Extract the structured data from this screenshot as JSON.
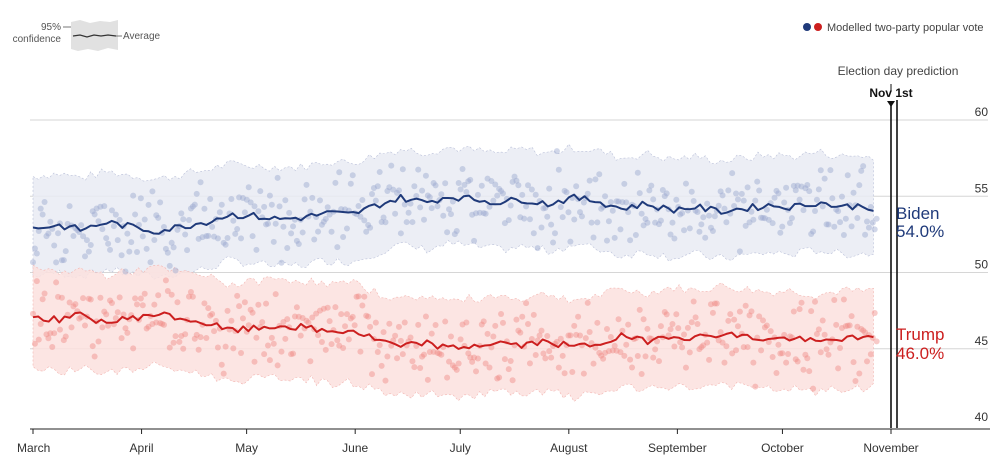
{
  "legend": {
    "confidence_label_line1": "95%",
    "confidence_label_line2": "confidence",
    "average_label": "Average",
    "dots_label": "Modelled two-party popular vote"
  },
  "prediction": {
    "title": "Election day prediction",
    "date_label": "Nov 1st"
  },
  "colors": {
    "biden": "#1f3a7a",
    "biden_band": "#e9ebf3",
    "biden_dot": "#9aa6cf",
    "trump": "#cc1f1f",
    "trump_band": "#fbe0de",
    "trump_dot": "#f08a86",
    "grid": "#d6d6d6"
  },
  "chart_data": {
    "type": "line",
    "title": "",
    "xlabel": "",
    "ylabel": "",
    "ylim": [
      40,
      60
    ],
    "y_ticks": [
      "40",
      "45",
      "50",
      "55",
      "60"
    ],
    "x_ticks": [
      "March",
      "April",
      "May",
      "June",
      "July",
      "August",
      "September",
      "October",
      "November"
    ],
    "x_range_days": [
      0,
      245
    ],
    "grid": true,
    "series": [
      {
        "name": "Biden",
        "final_label": "54.0%",
        "x": [
          0,
          7,
          14,
          21,
          28,
          35,
          42,
          49,
          56,
          63,
          70,
          77,
          84,
          91,
          98,
          105,
          112,
          119,
          126,
          133,
          140,
          147,
          154,
          161,
          168,
          175,
          182,
          189,
          196,
          203,
          210,
          217,
          224,
          231,
          238,
          241
        ],
        "average": [
          52.9,
          53.1,
          52.8,
          53.3,
          53.0,
          52.7,
          53.0,
          53.3,
          53.8,
          53.7,
          53.5,
          53.6,
          53.9,
          53.8,
          54.4,
          54.9,
          54.6,
          55.0,
          54.8,
          54.6,
          54.8,
          54.5,
          54.9,
          54.7,
          54.2,
          54.5,
          54.1,
          54.3,
          54.0,
          54.2,
          54.4,
          54.3,
          54.6,
          54.3,
          54.4,
          54.0
        ],
        "ci_low": [
          49.8,
          50.0,
          49.8,
          50.2,
          49.9,
          49.7,
          50.0,
          50.2,
          50.8,
          50.6,
          50.4,
          50.5,
          50.8,
          50.7,
          51.3,
          51.8,
          51.5,
          51.9,
          51.7,
          51.5,
          51.7,
          51.4,
          51.8,
          51.6,
          51.1,
          51.4,
          51.0,
          51.2,
          50.9,
          51.1,
          51.3,
          51.2,
          51.5,
          51.2,
          51.3,
          51.0
        ],
        "ci_high": [
          56.3,
          56.5,
          56.2,
          56.6,
          56.4,
          56.1,
          56.4,
          56.7,
          57.1,
          57.0,
          56.9,
          56.9,
          57.3,
          57.2,
          57.7,
          58.1,
          57.9,
          58.2,
          58.0,
          57.8,
          58.1,
          57.8,
          58.2,
          58.0,
          57.5,
          57.8,
          57.4,
          57.6,
          57.3,
          57.5,
          57.7,
          57.6,
          57.9,
          57.6,
          57.7,
          57.1
        ]
      },
      {
        "name": "Trump",
        "final_label": "46.0%",
        "x": [
          0,
          7,
          14,
          21,
          28,
          35,
          42,
          49,
          56,
          63,
          70,
          77,
          84,
          91,
          98,
          105,
          112,
          119,
          126,
          133,
          140,
          147,
          154,
          161,
          168,
          175,
          182,
          189,
          196,
          203,
          210,
          217,
          224,
          231,
          238,
          241
        ],
        "average": [
          47.1,
          46.9,
          47.2,
          46.7,
          47.0,
          47.3,
          47.0,
          46.7,
          46.2,
          46.3,
          46.5,
          46.4,
          46.1,
          46.2,
          45.6,
          45.1,
          45.4,
          45.0,
          45.2,
          45.4,
          45.2,
          45.5,
          45.1,
          45.3,
          45.8,
          45.5,
          45.9,
          45.7,
          46.0,
          45.8,
          45.6,
          45.7,
          45.4,
          45.7,
          45.6,
          46.0
        ],
        "ci_low": [
          43.7,
          43.5,
          43.8,
          43.4,
          43.6,
          43.9,
          43.6,
          43.3,
          42.9,
          43.0,
          43.1,
          43.1,
          42.7,
          42.8,
          42.3,
          41.9,
          42.1,
          41.8,
          42.0,
          42.2,
          41.9,
          42.2,
          41.8,
          42.0,
          42.5,
          42.2,
          42.6,
          42.4,
          42.7,
          42.5,
          42.3,
          42.4,
          42.1,
          42.4,
          42.3,
          42.9
        ],
        "ci_high": [
          50.2,
          50.0,
          50.2,
          49.8,
          50.1,
          50.3,
          50.0,
          49.8,
          49.2,
          49.4,
          49.6,
          49.5,
          49.2,
          49.3,
          48.7,
          48.2,
          48.5,
          48.1,
          48.3,
          48.5,
          48.3,
          48.6,
          48.2,
          48.4,
          48.9,
          48.6,
          49.0,
          48.8,
          49.1,
          48.9,
          48.7,
          48.8,
          48.5,
          48.8,
          48.7,
          49.0
        ]
      }
    ]
  }
}
